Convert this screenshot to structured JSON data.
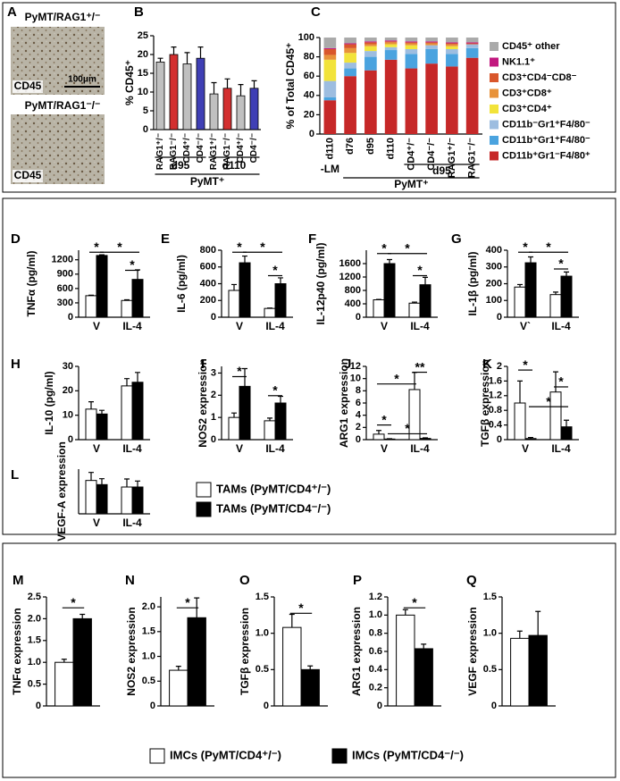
{
  "panel_a": {
    "panel": "A",
    "top_label": "PyMT/RAG1⁺/⁻",
    "top_stain": "CD45",
    "scale_bar": "100μm",
    "bottom_label": "PyMT/RAG1⁻/⁻",
    "bottom_stain": "CD45"
  },
  "chart_data": [
    {
      "type": "bar",
      "panel": "B",
      "ylabel": "% CD45⁺",
      "categories": [
        "RAG1⁺/⁻",
        "RAG1⁻/⁻",
        "CD4⁺/⁻",
        "CD4⁻/⁻",
        "RAG1⁺/⁻",
        "RAG1⁻/⁻",
        "CD4⁺/⁻",
        "CD4⁻/⁻"
      ],
      "values": [
        18,
        20,
        17.5,
        19,
        9.5,
        11,
        9,
        11
      ],
      "errors": [
        1,
        2,
        3,
        3,
        3,
        2.5,
        3,
        2
      ],
      "colors": [
        "#c0c0c0",
        "#d32f2f",
        "#c0c0c0",
        "#3f3fb5",
        "#c0c0c0",
        "#d32f2f",
        "#c0c0c0",
        "#3f3fb5"
      ],
      "ylim": [
        0,
        25
      ],
      "yticks": [
        0,
        5,
        10,
        15,
        20,
        25
      ],
      "groups": [
        "d95",
        "d110"
      ],
      "group_label": "PyMT⁺"
    },
    {
      "type": "stacked_bar",
      "panel": "C",
      "ylabel": "% of Total CD45⁺",
      "categories": [
        "d110",
        "d76",
        "d95",
        "d110",
        "CD4⁺/⁻",
        "CD4⁻/⁻",
        "RAG1⁺/⁻",
        "RAG1⁻/⁻"
      ],
      "note": "-LM",
      "group": "d95",
      "group_label": "PyMT⁺",
      "series": [
        {
          "name": "CD11b⁺Gr1⁻F4/80⁺",
          "color": "#c62828",
          "values": [
            35,
            60,
            66,
            77,
            68,
            73,
            70,
            79
          ]
        },
        {
          "name": "CD11b⁺Gr1⁺F4/80⁻",
          "color": "#4aa3df",
          "values": [
            3,
            8,
            14,
            10,
            15,
            15,
            13,
            10
          ]
        },
        {
          "name": "CD11b⁻Gr1⁺F4/80⁻",
          "color": "#9dbde0",
          "values": [
            17,
            6,
            6,
            3,
            5,
            4,
            5,
            4
          ]
        },
        {
          "name": "CD3⁺CD4⁺",
          "color": "#f2e33a",
          "values": [
            22,
            10,
            5,
            3,
            4,
            0,
            3,
            0
          ]
        },
        {
          "name": "CD3⁺CD8⁺",
          "color": "#e8923a",
          "values": [
            5,
            5,
            2,
            2,
            2,
            2,
            2,
            0
          ]
        },
        {
          "name": "CD3⁺CD4⁻CD8⁻",
          "color": "#d9562b",
          "values": [
            6,
            4,
            2,
            1,
            1,
            1,
            1,
            1
          ]
        },
        {
          "name": "NK1.1⁺",
          "color": "#c2187f",
          "values": [
            1,
            1,
            1,
            1,
            1,
            1,
            1,
            1
          ]
        },
        {
          "name": "CD45⁺ other",
          "color": "#aaaaaa",
          "values": [
            11,
            6,
            4,
            3,
            4,
            4,
            5,
            5
          ]
        }
      ],
      "ylim": [
        0,
        100
      ],
      "yticks": [
        0,
        20,
        40,
        60,
        80,
        100
      ]
    },
    {
      "type": "grouped_bar",
      "panel": "D",
      "ylabel": "TNFα (pg/ml)",
      "categories": [
        "V",
        "IL-4"
      ],
      "series": [
        {
          "color": "#ffffff",
          "values": [
            450,
            350
          ],
          "errors": [
            10,
            15
          ]
        },
        {
          "color": "#000000",
          "values": [
            1290,
            790
          ],
          "errors": [
            15,
            200
          ]
        }
      ],
      "ylim": [
        0,
        1400
      ],
      "yticks": [
        0,
        300,
        600,
        900,
        1200
      ],
      "annotations": [
        "*",
        "*",
        "*"
      ]
    },
    {
      "type": "grouped_bar",
      "panel": "E",
      "ylabel": "IL-6 (pg/ml)",
      "categories": [
        "V",
        "IL-4"
      ],
      "series": [
        {
          "color": "#ffffff",
          "values": [
            320,
            105
          ],
          "errors": [
            70,
            5
          ]
        },
        {
          "color": "#000000",
          "values": [
            650,
            400
          ],
          "errors": [
            80,
            70
          ]
        }
      ],
      "ylim": [
        0,
        800
      ],
      "yticks": [
        0,
        200,
        400,
        600,
        800
      ],
      "annotations": [
        "*",
        "*",
        "*"
      ]
    },
    {
      "type": "grouped_bar",
      "panel": "F",
      "ylabel": "IL-12p40 (pg/ml)",
      "categories": [
        "V",
        "IL-4"
      ],
      "series": [
        {
          "color": "#ffffff",
          "values": [
            520,
            420
          ],
          "errors": [
            10,
            30
          ]
        },
        {
          "color": "#000000",
          "values": [
            1600,
            970
          ],
          "errors": [
            120,
            220
          ]
        }
      ],
      "ylim": [
        0,
        2000
      ],
      "yticks": [
        0,
        400,
        800,
        1200,
        1600
      ],
      "annotations": [
        "*",
        "*",
        "*"
      ]
    },
    {
      "type": "grouped_bar",
      "panel": "G",
      "ylabel": "IL-1β (pg/ml)",
      "categories": [
        "V`",
        "IL-4"
      ],
      "series": [
        {
          "color": "#ffffff",
          "values": [
            180,
            135
          ],
          "errors": [
            15,
            15
          ]
        },
        {
          "color": "#000000",
          "values": [
            325,
            245
          ],
          "errors": [
            35,
            25
          ]
        }
      ],
      "ylim": [
        0,
        400
      ],
      "yticks": [
        0,
        100,
        200,
        300,
        400
      ],
      "annotations": [
        "*",
        "*",
        "*"
      ]
    },
    {
      "type": "grouped_bar",
      "panel": "H",
      "ylabel": "IL-10 (pg/ml)",
      "categories": [
        "V",
        "IL-4"
      ],
      "series": [
        {
          "color": "#ffffff",
          "values": [
            12.5,
            22
          ],
          "errors": [
            3,
            3
          ]
        },
        {
          "color": "#000000",
          "values": [
            10.5,
            23.5
          ],
          "errors": [
            1.5,
            4
          ]
        }
      ],
      "ylim": [
        0,
        30
      ],
      "yticks": [
        0,
        10,
        20,
        30
      ]
    },
    {
      "type": "grouped_bar",
      "panel": "I",
      "ylabel": "NOS2 expression",
      "categories": [
        "V",
        "IL-4"
      ],
      "series": [
        {
          "color": "#ffffff",
          "values": [
            1.0,
            0.85
          ],
          "errors": [
            0.2,
            0.12
          ]
        },
        {
          "color": "#000000",
          "values": [
            2.4,
            1.65
          ],
          "errors": [
            0.8,
            0.3
          ]
        }
      ],
      "ylim": [
        0,
        3.3
      ],
      "yticks": [
        0,
        1,
        2,
        3
      ],
      "annotations": [
        "*",
        "*"
      ]
    },
    {
      "type": "grouped_bar",
      "panel": "J",
      "ylabel": "ARG1 expression",
      "categories": [
        "V",
        "IL-4"
      ],
      "series": [
        {
          "color": "#ffffff",
          "values": [
            0.9,
            8.2
          ],
          "errors": [
            0.6,
            2.8
          ]
        },
        {
          "color": "#000000",
          "values": [
            0.1,
            0.2
          ],
          "errors": [
            0.05,
            0.1
          ]
        }
      ],
      "ylim": [
        0,
        12
      ],
      "yticks": [
        0,
        2,
        4,
        6,
        8,
        10,
        12
      ],
      "annotations": [
        "*",
        "*",
        "*",
        "**"
      ]
    },
    {
      "type": "grouped_bar",
      "panel": "K",
      "ylabel": "TGFβ expression",
      "categories": [
        "V",
        "IL-4"
      ],
      "series": [
        {
          "color": "#ffffff",
          "values": [
            1.0,
            1.3
          ],
          "errors": [
            0.6,
            0.55
          ]
        },
        {
          "color": "#000000",
          "values": [
            0.03,
            0.35
          ],
          "errors": [
            0.03,
            0.18
          ]
        }
      ],
      "ylim": [
        0,
        2
      ],
      "yticks": [
        0,
        0.4,
        0.8,
        1.2,
        1.6,
        2
      ],
      "annotations": [
        "*",
        "*",
        "*"
      ]
    },
    {
      "type": "grouped_bar",
      "panel": "L",
      "ylabel": "VEGF-A expression",
      "categories": [
        "V",
        "IL-4"
      ],
      "series": [
        {
          "name": "TAMs (PyMT/CD4⁺/⁻)",
          "color": "#ffffff",
          "values": [
            1.12,
            0.9
          ],
          "errors": [
            0.27,
            0.27
          ]
        },
        {
          "name": "TAMs (PyMT/CD4⁻/⁻)",
          "color": "#000000",
          "values": [
            0.98,
            0.9
          ],
          "errors": [
            0.2,
            0.2
          ]
        }
      ],
      "ylim": [
        0,
        1.5
      ]
    },
    {
      "type": "grouped_bar",
      "panel": "M",
      "ylabel": "TNFα expression",
      "series": [
        {
          "name": "IMCs (PyMT/CD4⁺/⁻)",
          "color": "#ffffff",
          "values": [
            1.0
          ],
          "errors": [
            0.07
          ]
        },
        {
          "name": "IMCs (PyMT/CD4⁻/⁻)",
          "color": "#000000",
          "values": [
            2.0
          ],
          "errors": [
            0.1
          ]
        }
      ],
      "ylim": [
        0,
        2.5
      ],
      "yticks": [
        0,
        0.5,
        {
          "value": 1,
          "label": "1.0"
        },
        1.5,
        {
          "value": 2,
          "label": "2.0"
        },
        2.5
      ],
      "annotations": [
        "*"
      ]
    },
    {
      "type": "grouped_bar",
      "panel": "N",
      "ylabel": "NOS2 expression",
      "series": [
        {
          "color": "#ffffff",
          "values": [
            0.72
          ],
          "errors": [
            0.08
          ]
        },
        {
          "color": "#000000",
          "values": [
            1.78
          ],
          "errors": [
            0.4
          ]
        }
      ],
      "ylim": [
        0,
        2.2
      ],
      "yticks": [
        0,
        0.5,
        {
          "value": 1,
          "label": "1.0"
        },
        1.5,
        {
          "value": 2,
          "label": "2.0"
        }
      ],
      "annotations": [
        "*"
      ]
    },
    {
      "type": "grouped_bar",
      "panel": "O",
      "ylabel": "TGFβ expression",
      "series": [
        {
          "color": "#ffffff",
          "values": [
            1.08
          ],
          "errors": [
            0.18
          ]
        },
        {
          "color": "#000000",
          "values": [
            0.5
          ],
          "errors": [
            0.05
          ]
        }
      ],
      "ylim": [
        0,
        1.5
      ],
      "yticks": [
        0,
        0.5,
        {
          "value": 1,
          "label": "1.0"
        },
        1.5
      ],
      "annotations": [
        "*"
      ]
    },
    {
      "type": "grouped_bar",
      "panel": "P",
      "ylabel": "ARG1 expression",
      "series": [
        {
          "color": "#ffffff",
          "values": [
            1.0
          ],
          "errors": [
            0.06
          ]
        },
        {
          "color": "#000000",
          "values": [
            0.63
          ],
          "errors": [
            0.05
          ]
        }
      ],
      "ylim": [
        0,
        1.2
      ],
      "yticks": [
        0,
        0.2,
        0.4,
        0.6,
        0.8,
        {
          "value": 1,
          "label": "1.0"
        },
        1.2
      ],
      "annotations": [
        "*"
      ]
    },
    {
      "type": "grouped_bar",
      "panel": "Q",
      "ylabel": "VEGF expression",
      "series": [
        {
          "color": "#ffffff",
          "values": [
            0.93
          ],
          "errors": [
            0.1
          ]
        },
        {
          "color": "#000000",
          "values": [
            0.97
          ],
          "errors": [
            0.33
          ]
        }
      ],
      "ylim": [
        0,
        1.5
      ],
      "yticks": [
        0,
        0.5,
        {
          "value": 1,
          "label": "1.0"
        },
        1.5
      ]
    }
  ]
}
